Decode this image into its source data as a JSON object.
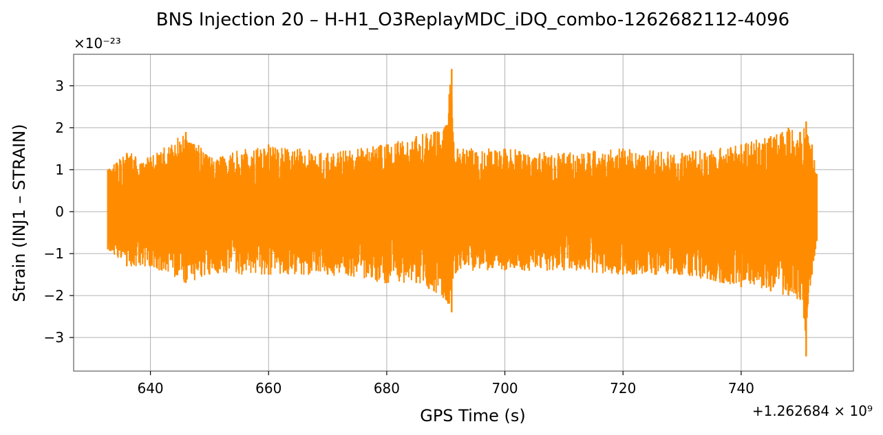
{
  "chart_data": {
    "type": "line",
    "title": "BNS Injection 20 – H-H1_O3ReplayMDC_iDQ_combo-1262682112-4096",
    "xlabel": "GPS Time (s)",
    "ylabel": "Strain (INJ1 – STRAIN)",
    "x_offset_label": "+1.262684 × 10⁹",
    "y_scale_label": "×10⁻²³",
    "xlim": [
      627,
      759
    ],
    "ylim": [
      -3.8,
      3.75
    ],
    "x_ticks": [
      640,
      660,
      680,
      700,
      720,
      740
    ],
    "x_tick_labels": [
      "640",
      "660",
      "680",
      "700",
      "720",
      "740"
    ],
    "y_ticks": [
      3,
      2,
      1,
      0,
      -1,
      -2,
      -3
    ],
    "y_tick_labels": [
      "3",
      "2",
      "1",
      "0",
      "−1",
      "−2",
      "−3"
    ],
    "grid": true,
    "series": [
      {
        "color": "#ff8c00",
        "x_range": [
          632.8,
          752.8
        ],
        "envelope": {
          "x": [
            632.8,
            636,
            640,
            646,
            650,
            660,
            670,
            680,
            685,
            688,
            690,
            691.0,
            691.2,
            692,
            700,
            710,
            720,
            730,
            740,
            745,
            748,
            750,
            751.0,
            751.3,
            752,
            752.8
          ],
          "upper": [
            1.0,
            1.4,
            1.3,
            1.9,
            1.3,
            1.6,
            1.4,
            1.6,
            1.8,
            1.9,
            2.05,
            3.4,
            1.9,
            1.5,
            1.5,
            1.4,
            1.5,
            1.4,
            1.6,
            1.8,
            2.0,
            1.9,
            2.15,
            1.8,
            1.6,
            0.9
          ],
          "lower": [
            -0.9,
            -1.3,
            -1.3,
            -1.7,
            -1.5,
            -1.5,
            -1.5,
            -1.7,
            -1.7,
            -1.9,
            -2.1,
            -2.4,
            -1.6,
            -1.4,
            -1.4,
            -1.4,
            -1.5,
            -1.5,
            -1.8,
            -1.9,
            -2.0,
            -2.1,
            -3.45,
            -2.2,
            -1.5,
            -0.7
          ]
        }
      }
    ]
  }
}
